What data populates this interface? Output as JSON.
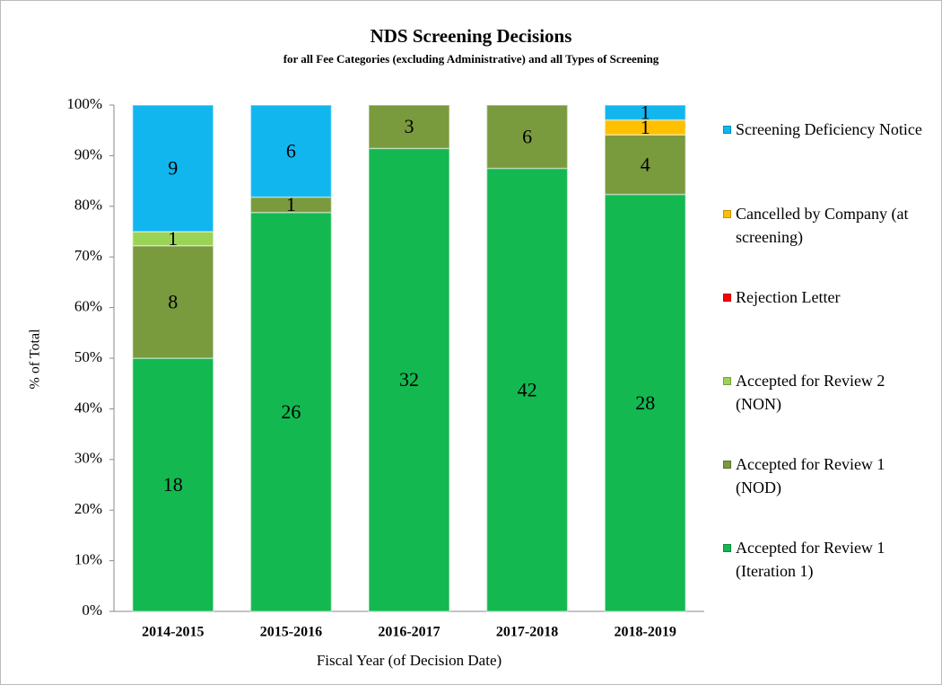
{
  "chart_data": {
    "type": "bar",
    "stacking": "percent",
    "title": "NDS Screening Decisions",
    "subtitle": "for all Fee Categories (excluding Administrative) and all Types of Screening",
    "x_label": "Fiscal Year (of Decision Date)",
    "y_label": "% of Total",
    "categories": [
      "2014-2015",
      "2015-2016",
      "2016-2017",
      "2017-2018",
      "2018-2019"
    ],
    "series": [
      {
        "name": "Accepted for Review 1 (Iteration 1)",
        "color": "#14b850",
        "values": [
          18,
          26,
          32,
          42,
          28
        ]
      },
      {
        "name": "Accepted for Review 1 (NOD)",
        "color": "#7a9a3e",
        "values": [
          8,
          1,
          3,
          6,
          4
        ]
      },
      {
        "name": "Accepted for Review 2 (NON)",
        "color": "#9ad456",
        "values": [
          1,
          null,
          null,
          null,
          null
        ]
      },
      {
        "name": "Rejection Letter",
        "color": "#ff0000",
        "values": [
          null,
          null,
          null,
          null,
          null
        ]
      },
      {
        "name": "Cancelled by Company (at screening)",
        "color": "#ffc000",
        "values": [
          null,
          null,
          null,
          null,
          1
        ]
      },
      {
        "name": "Screening Deficiency Notice",
        "color": "#12b6ef",
        "values": [
          9,
          6,
          null,
          null,
          1
        ]
      }
    ],
    "ylim": [
      0,
      100
    ],
    "yticks": [
      {
        "value": 0,
        "label": "0%"
      },
      {
        "value": 10,
        "label": "10%"
      },
      {
        "value": 20,
        "label": "20%"
      },
      {
        "value": 30,
        "label": "30%"
      },
      {
        "value": 40,
        "label": "40%"
      },
      {
        "value": 50,
        "label": "50%"
      },
      {
        "value": 60,
        "label": "60%"
      },
      {
        "value": 70,
        "label": "70%"
      },
      {
        "value": 80,
        "label": "80%"
      },
      {
        "value": 90,
        "label": "90%"
      },
      {
        "value": 100,
        "label": "100%"
      }
    ],
    "legend": "right"
  }
}
